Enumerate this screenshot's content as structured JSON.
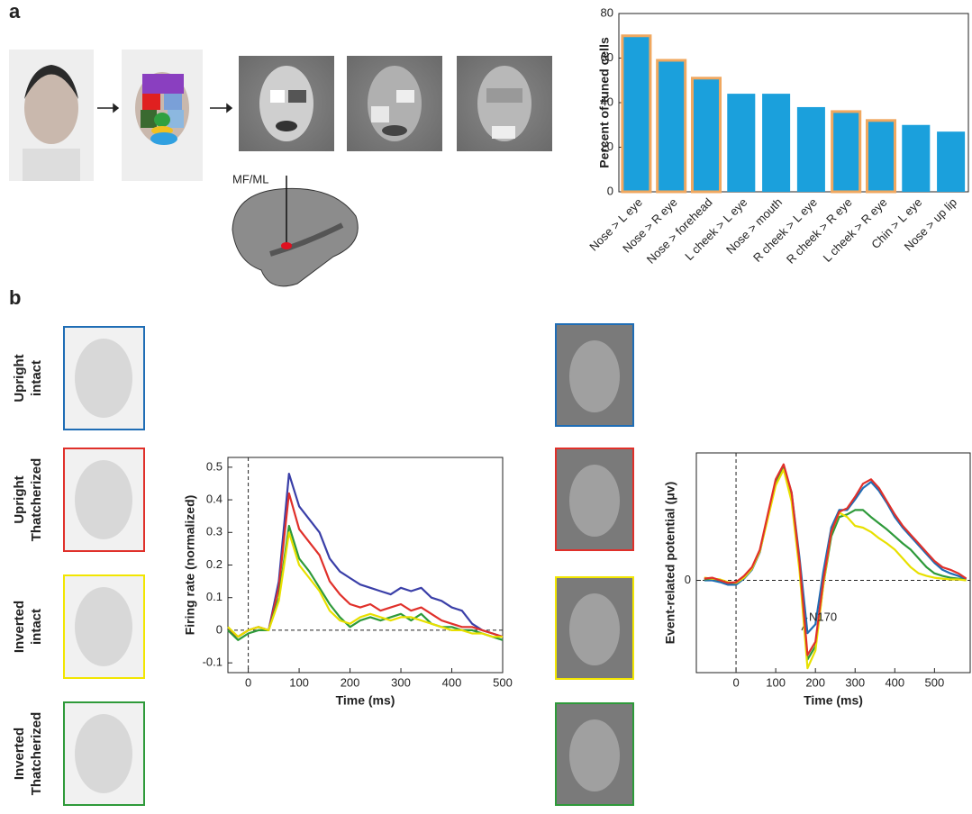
{
  "figure": {
    "panel_labels": [
      "a",
      "b"
    ],
    "recording_site": "MF/ML",
    "conditions": [
      {
        "lines": [
          "Upright",
          "intact"
        ],
        "color": "#1f6db5"
      },
      {
        "lines": [
          "Upright",
          "Thatcherized"
        ],
        "color": "#e0302a"
      },
      {
        "lines": [
          "Inverted",
          "intact"
        ],
        "color": "#f2e600"
      },
      {
        "lines": [
          "Inverted",
          "Thatcherized"
        ],
        "color": "#2e9a3a"
      }
    ],
    "annotation": "N170"
  },
  "chart_data": [
    {
      "type": "bar",
      "y_label": "Percent of tuned cells",
      "categories": [
        "Nose > L eye",
        "Nose > R eye",
        "Nose > forehead",
        "L cheek > L eye",
        "Nose > mouth",
        "R cheek > L eye",
        "R cheek > R eye",
        "L cheek > R eye",
        "Chin > L eye",
        "Nose > up lip"
      ],
      "values": [
        70,
        59,
        51,
        44,
        44,
        38,
        36,
        32,
        30,
        27
      ],
      "color": "#1ba0dc",
      "edgecolors": [
        "#f0a860",
        "#f0a860",
        "#f0a860",
        null,
        null,
        null,
        "#f0a860",
        "#f0a860",
        null,
        null
      ],
      "ylim": [
        0,
        80
      ],
      "yticks": [
        0,
        20,
        40,
        60,
        80
      ]
    },
    {
      "type": "line",
      "x_label": "Time (ms)",
      "y_label": "Firing rate (normalized)",
      "x": [
        -40,
        -20,
        0,
        20,
        40,
        60,
        80,
        100,
        120,
        140,
        160,
        180,
        200,
        220,
        240,
        260,
        280,
        300,
        320,
        340,
        360,
        380,
        400,
        420,
        440,
        460,
        480,
        500
      ],
      "series": [
        {
          "color": "#3a3fa8",
          "values": [
            0,
            -0.02,
            0,
            0.01,
            0,
            0.15,
            0.48,
            0.38,
            0.34,
            0.3,
            0.22,
            0.18,
            0.16,
            0.14,
            0.13,
            0.12,
            0.11,
            0.13,
            0.12,
            0.13,
            0.1,
            0.09,
            0.07,
            0.06,
            0.02,
            0,
            -0.01,
            -0.02
          ]
        },
        {
          "color": "#e0302a",
          "values": [
            0,
            -0.02,
            0,
            0.01,
            0,
            0.13,
            0.42,
            0.31,
            0.27,
            0.23,
            0.15,
            0.11,
            0.08,
            0.07,
            0.08,
            0.06,
            0.07,
            0.08,
            0.06,
            0.07,
            0.05,
            0.03,
            0.02,
            0.01,
            0.01,
            0,
            -0.01,
            -0.02
          ]
        },
        {
          "color": "#2e9a3a",
          "values": [
            0,
            -0.03,
            -0.01,
            0,
            0,
            0.1,
            0.32,
            0.22,
            0.18,
            0.13,
            0.08,
            0.04,
            0.01,
            0.03,
            0.04,
            0.03,
            0.04,
            0.05,
            0.03,
            0.05,
            0.02,
            0.01,
            0.01,
            0,
            0,
            -0.01,
            -0.02,
            -0.03
          ]
        },
        {
          "color": "#e8e000",
          "values": [
            0.01,
            -0.02,
            0,
            0.01,
            0,
            0.09,
            0.3,
            0.2,
            0.16,
            0.12,
            0.06,
            0.03,
            0.02,
            0.04,
            0.05,
            0.04,
            0.03,
            0.04,
            0.04,
            0.03,
            0.02,
            0.01,
            0,
            0,
            -0.01,
            -0.01,
            -0.02,
            -0.02
          ]
        }
      ],
      "xlim": [
        -40,
        500
      ],
      "xticks": [
        0,
        100,
        200,
        300,
        400,
        500
      ],
      "ylim": [
        -0.13,
        0.53
      ],
      "yticks": [
        -0.1,
        0,
        0.1,
        0.2,
        0.3,
        0.4,
        0.5
      ],
      "reference_lines": {
        "x": 0,
        "y": 0
      }
    },
    {
      "type": "line",
      "x_label": "Time (ms)",
      "y_label": "Event-related potential (μv)",
      "x": [
        -80,
        -60,
        -40,
        -20,
        0,
        20,
        40,
        60,
        80,
        100,
        120,
        140,
        160,
        180,
        200,
        220,
        240,
        260,
        280,
        300,
        320,
        340,
        360,
        380,
        400,
        420,
        440,
        460,
        480,
        500,
        520,
        540,
        560,
        580
      ],
      "series": [
        {
          "color": "#1f6db5",
          "values": [
            0,
            0,
            -0.02,
            -0.05,
            -0.05,
            0.02,
            0.12,
            0.32,
            0.72,
            1.12,
            1.3,
            1.0,
            0.25,
            -0.6,
            -0.5,
            0.1,
            0.6,
            0.8,
            0.8,
            0.92,
            1.05,
            1.12,
            1.02,
            0.88,
            0.72,
            0.6,
            0.5,
            0.4,
            0.3,
            0.2,
            0.12,
            0.08,
            0.05,
            0.01
          ]
        },
        {
          "color": "#2e9a3a",
          "values": [
            0.01,
            0.02,
            0,
            -0.03,
            -0.03,
            0.04,
            0.14,
            0.34,
            0.72,
            1.1,
            1.28,
            0.95,
            0.15,
            -0.9,
            -0.75,
            -0.05,
            0.5,
            0.72,
            0.75,
            0.8,
            0.8,
            0.72,
            0.65,
            0.58,
            0.5,
            0.42,
            0.35,
            0.25,
            0.15,
            0.08,
            0.05,
            0.03,
            0.02,
            0
          ]
        },
        {
          "color": "#e8e000",
          "values": [
            0.03,
            0.02,
            0.01,
            -0.02,
            -0.03,
            0.03,
            0.13,
            0.33,
            0.7,
            1.08,
            1.26,
            0.9,
            0.1,
            -1.0,
            -0.8,
            -0.05,
            0.55,
            0.77,
            0.72,
            0.62,
            0.6,
            0.55,
            0.48,
            0.42,
            0.35,
            0.25,
            0.15,
            0.08,
            0.05,
            0.03,
            0.02,
            0.01,
            0.01,
            0
          ]
        },
        {
          "color": "#e0302a",
          "values": [
            0.02,
            0.03,
            0,
            -0.03,
            -0.02,
            0.05,
            0.15,
            0.35,
            0.75,
            1.15,
            1.32,
            1.0,
            0.2,
            -0.85,
            -0.7,
            0,
            0.55,
            0.78,
            0.82,
            0.95,
            1.1,
            1.15,
            1.05,
            0.9,
            0.75,
            0.62,
            0.52,
            0.42,
            0.32,
            0.22,
            0.15,
            0.12,
            0.08,
            0.02
          ]
        }
      ],
      "xlim": [
        -100,
        590
      ],
      "xticks": [
        0,
        100,
        200,
        300,
        400,
        500
      ],
      "ylim": [
        -1.05,
        1.45
      ],
      "yticks": [
        0
      ],
      "reference_lines": {
        "x": 0,
        "y": 0
      }
    }
  ]
}
